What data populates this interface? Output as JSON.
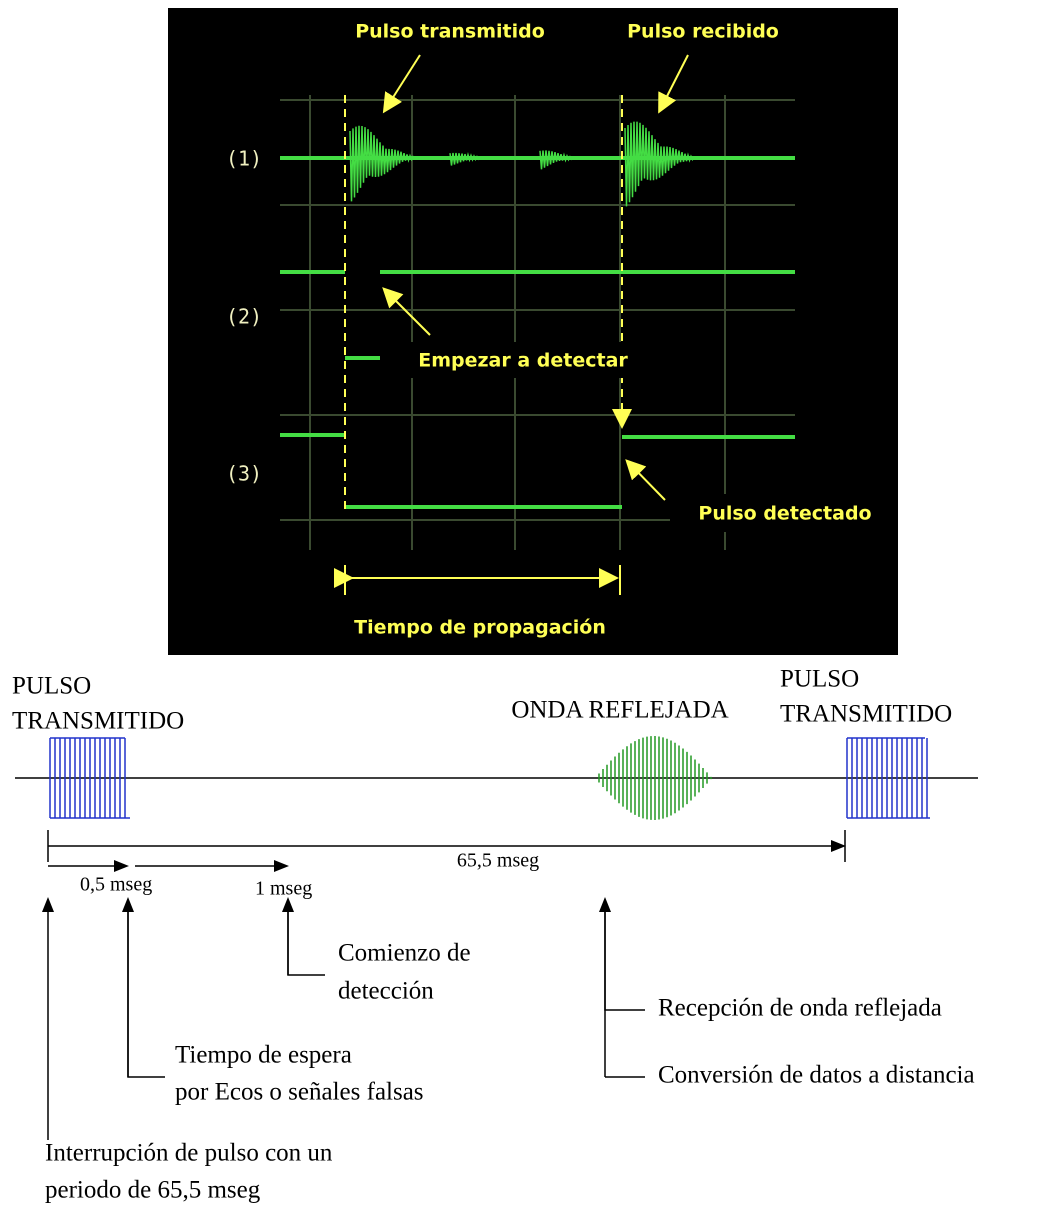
{
  "oscilloscope": {
    "pulse_transmitted": "Pulso transmitido",
    "pulse_received": "Pulso recibido",
    "channels": [
      "(1)",
      "(2)",
      "(3)"
    ],
    "start_detect": "Empezar a detectar",
    "pulse_detected": "Pulso detectado",
    "propagation_time": "Tiempo de propagación"
  },
  "timing": {
    "pulse_left": [
      "PULSO",
      "TRANSMITIDO"
    ],
    "reflected_wave": "ONDA REFLEJADA",
    "pulse_right": [
      "PULSO",
      "TRANSMITIDO"
    ],
    "period": "65,5 mseg",
    "wait": "0,5 mseg",
    "detect": "1 mseg",
    "detect_start": [
      "Comienzo de",
      "detección"
    ],
    "wait_desc": [
      "Tiempo de espera",
      "por Ecos o señales falsas"
    ],
    "reception": "Recepción de onda reflejada",
    "conversion": "Conversión de datos a distancia",
    "interrupt": [
      "Interrupción de pulso con un",
      "periodo de 65,5 mseg"
    ]
  }
}
